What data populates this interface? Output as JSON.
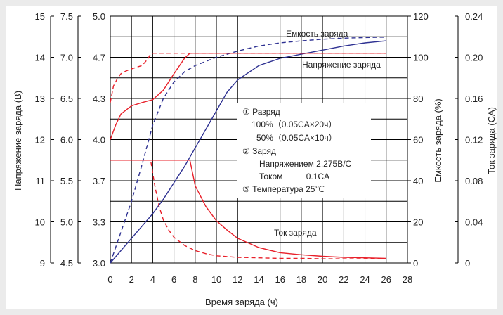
{
  "chart_data": {
    "type": "line",
    "xlabel": "Время заряда (ч)",
    "xlim": [
      0,
      28
    ],
    "x_ticks": [
      "0",
      "2",
      "4",
      "6",
      "8",
      "10",
      "12",
      "14",
      "16",
      "18",
      "20",
      "22",
      "24",
      "26",
      "28"
    ],
    "y_axes": {
      "voltage_12v": {
        "label": "Напряжение заряда (В)",
        "range": [
          9,
          15
        ],
        "ticks": [
          "9",
          "10",
          "11",
          "12",
          "13",
          "14",
          "15"
        ]
      },
      "voltage_6v": {
        "range": [
          4.5,
          7.5
        ],
        "ticks": [
          "4.5",
          "5.0",
          "5.5",
          "6.0",
          "6.5",
          "7.0",
          "7.5"
        ]
      },
      "voltage_cell": {
        "range": [
          3.0,
          5.0
        ],
        "ticks": [
          "3.0",
          "3.3",
          "3.7",
          "4.0",
          "4.3",
          "4.7",
          "5.0"
        ]
      },
      "capacity": {
        "label": "Емкость заряда (%)",
        "range": [
          0,
          120
        ],
        "ticks": [
          "0",
          "20",
          "40",
          "60",
          "80",
          "100",
          "120"
        ]
      },
      "current": {
        "label": "Ток заряда (CA)",
        "range": [
          0,
          0.24
        ],
        "ticks": [
          "0",
          "0.04",
          "0.08",
          "0.12",
          "0.16",
          "0.20",
          "0.24"
        ]
      }
    },
    "series": [
      {
        "name": "Емкость заряда",
        "style": "solid",
        "color": "#2e3192",
        "axis": "capacity",
        "x": [
          0,
          1,
          2,
          3,
          4,
          5,
          6,
          7,
          8,
          9,
          10,
          11,
          12,
          14,
          16,
          18,
          20,
          22,
          24,
          26
        ],
        "y": [
          0,
          6,
          12,
          18,
          24,
          31,
          39,
          47,
          56,
          65,
          74,
          83,
          89,
          96,
          99.5,
          101.5,
          103.5,
          105.5,
          107,
          108
        ]
      },
      {
        "style": "dashed",
        "color": "#2e3192",
        "axis": "capacity",
        "x": [
          0,
          1,
          2,
          3,
          4,
          5,
          6,
          7,
          8,
          10,
          12,
          14,
          16,
          18,
          20,
          22,
          24,
          26
        ],
        "y": [
          0,
          15,
          30,
          48,
          67,
          80,
          88,
          93,
          96,
          100,
          103,
          105.5,
          107,
          108,
          108.8,
          109.3,
          109.6,
          109.8
        ]
      },
      {
        "name": "Напряжение заряда",
        "style": "solid",
        "color": "#e8202a",
        "axis": "voltage_12v",
        "x": [
          0,
          0.5,
          1,
          2,
          3,
          4,
          5,
          6,
          7,
          7.5,
          26
        ],
        "y": [
          12.0,
          12.35,
          12.62,
          12.82,
          12.9,
          12.97,
          13.2,
          13.6,
          13.98,
          14.1,
          14.1
        ]
      },
      {
        "style": "dashed",
        "color": "#e8202a",
        "axis": "voltage_12v",
        "x": [
          0,
          0.3,
          0.7,
          1,
          1.5,
          2,
          2.5,
          3,
          3.5,
          3.8,
          4,
          26
        ],
        "y": [
          12.9,
          13.3,
          13.5,
          13.6,
          13.67,
          13.72,
          13.76,
          13.8,
          13.95,
          14.08,
          14.1,
          14.1
        ]
      },
      {
        "name": "Ток заряда",
        "style": "solid",
        "color": "#e8202a",
        "axis": "current",
        "x": [
          0,
          7.5,
          8,
          9,
          10,
          11,
          12,
          14,
          16,
          18,
          20,
          22,
          24,
          26
        ],
        "y": [
          0.1,
          0.1,
          0.075,
          0.055,
          0.041,
          0.032,
          0.024,
          0.015,
          0.01,
          0.008,
          0.0065,
          0.0055,
          0.005,
          0.0045
        ]
      },
      {
        "style": "dashed",
        "color": "#e8202a",
        "axis": "current",
        "x": [
          0,
          3.8,
          4.2,
          4.6,
          5,
          5.5,
          6,
          7,
          8,
          9,
          10,
          12,
          14,
          16,
          18,
          20,
          22,
          24,
          26
        ],
        "y": [
          0.1,
          0.1,
          0.075,
          0.055,
          0.042,
          0.032,
          0.025,
          0.017,
          0.012,
          0.009,
          0.007,
          0.0055,
          0.005,
          0.0045,
          0.0045,
          0.004,
          0.004,
          0.004,
          0.004
        ]
      }
    ],
    "annotations": {
      "capacity_label": "Емкость заряда",
      "voltage_label": "Напряжение заряда",
      "current_label": "Ток заряда",
      "legend_lines": [
        "①  Разряд",
        "100%（0.05CA×20ч）",
        "50%（0.05CA×10ч）",
        "②  Заряд",
        "Напряжением 2.275В/С",
        "Током          0.1CA",
        "③  Температура  25℃"
      ]
    },
    "grid": true,
    "colors": {
      "blue": "#2e3192",
      "red": "#e8202a",
      "grid": "#000000",
      "background": "#ebebeb",
      "plot_bg": "#ffffff"
    }
  }
}
